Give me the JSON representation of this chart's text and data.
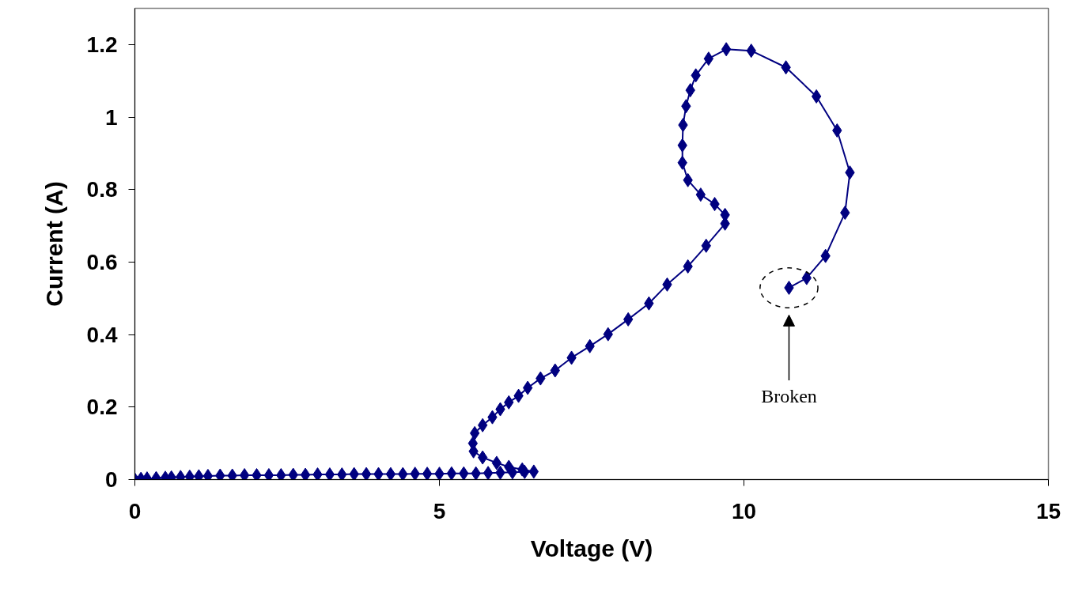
{
  "chart_data": {
    "type": "line",
    "xlabel": "Voltage (V)",
    "ylabel": "Current (A)",
    "xlim": [
      0,
      15
    ],
    "ylim": [
      0,
      1.3
    ],
    "xticks": [
      0,
      5,
      10,
      15
    ],
    "yticks": [
      0,
      0.2,
      0.4,
      0.6,
      0.8,
      1,
      1.2
    ],
    "grid": false,
    "marker": "diamond",
    "line_style": "solid",
    "annotations": [
      "Broken"
    ],
    "series": [
      {
        "color": "#000080",
        "x": [
          0,
          0.1,
          0.2,
          0.35,
          0.5,
          0.6,
          0.75,
          0.9,
          1.05,
          1.2,
          1.4,
          1.6,
          1.8,
          2.0,
          2.2,
          2.4,
          2.6,
          2.8,
          3.0,
          3.2,
          3.4,
          3.6,
          3.8,
          4.0,
          4.2,
          4.4,
          4.6,
          4.8,
          5.0,
          5.2,
          5.4,
          5.6,
          5.8,
          6.0,
          6.2,
          6.4,
          6.55,
          6.36,
          6.14,
          5.94,
          5.71,
          5.56,
          5.55,
          5.58,
          5.71,
          5.87,
          6.0,
          6.14,
          6.3,
          6.45,
          6.66,
          6.9,
          7.17,
          7.47,
          7.77,
          8.1,
          8.44,
          8.74,
          9.08,
          9.38,
          9.69,
          9.69,
          9.52,
          9.29,
          9.08,
          8.99,
          8.99,
          9.0,
          9.05,
          9.12,
          9.21,
          9.42,
          9.71,
          10.12,
          10.69,
          11.19,
          11.53,
          11.74,
          11.66,
          11.34,
          11.03,
          10.74
        ],
        "values": [
          0,
          0.002,
          0.003,
          0.004,
          0.005,
          0.006,
          0.007,
          0.008,
          0.009,
          0.01,
          0.011,
          0.011,
          0.012,
          0.012,
          0.012,
          0.012,
          0.013,
          0.013,
          0.014,
          0.014,
          0.014,
          0.015,
          0.015,
          0.015,
          0.015,
          0.015,
          0.016,
          0.016,
          0.016,
          0.017,
          0.017,
          0.017,
          0.018,
          0.019,
          0.02,
          0.021,
          0.022,
          0.028,
          0.035,
          0.046,
          0.061,
          0.078,
          0.1,
          0.128,
          0.15,
          0.172,
          0.194,
          0.213,
          0.231,
          0.253,
          0.279,
          0.301,
          0.336,
          0.368,
          0.401,
          0.442,
          0.486,
          0.538,
          0.588,
          0.645,
          0.706,
          0.73,
          0.76,
          0.786,
          0.826,
          0.874,
          0.922,
          0.978,
          1.03,
          1.074,
          1.115,
          1.161,
          1.187,
          1.183,
          1.137,
          1.057,
          0.963,
          0.847,
          0.736,
          0.617,
          0.556,
          0.529
        ]
      }
    ]
  }
}
